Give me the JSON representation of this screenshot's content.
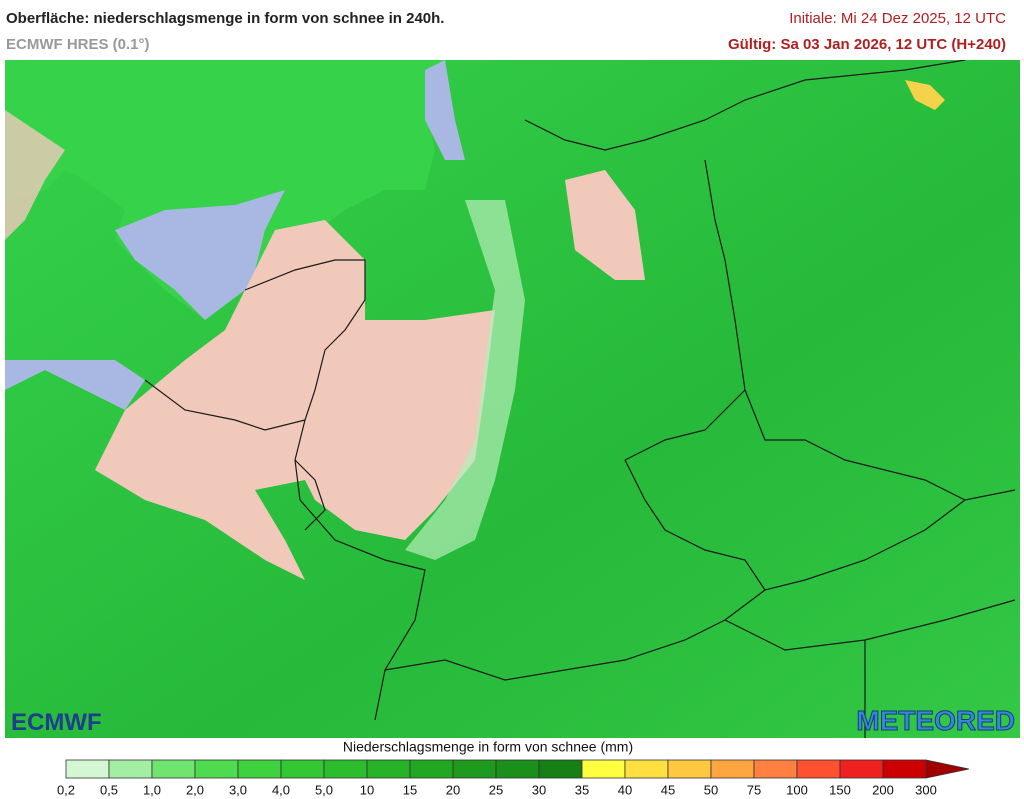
{
  "header": {
    "title": "Oberfläche: niederschlagsmenge in form von schnee in 240h.",
    "model": "ECMWF HRES (0.1°)",
    "init": "Initiale: Mi 24 Dez 2025, 12 UTC",
    "valid": "Gültig: Sa 03 Jan 2026, 12 UTC (H+240)"
  },
  "logos": {
    "left": "ECMWF",
    "right": "METEORED"
  },
  "legend": {
    "title": "Niederschlagsmenge in form von schnee (mm)",
    "labels": [
      "0,2",
      "0,5",
      "1,0",
      "2,0",
      "3,0",
      "4,0",
      "5,0",
      "10",
      "15",
      "20",
      "25",
      "30",
      "35",
      "40",
      "45",
      "50",
      "75",
      "100",
      "150",
      "200",
      "300"
    ],
    "colors": [
      "#d2f7d2",
      "#a3eea3",
      "#6fe46f",
      "#4fdb4f",
      "#3ed23e",
      "#33c833",
      "#2cbd2c",
      "#27b227",
      "#22a722",
      "#1e9b1e",
      "#1a8f1a",
      "#167f16",
      "#ffff40",
      "#ffe040",
      "#ffc840",
      "#ffa640",
      "#ff8040",
      "#ff5030",
      "#ee2020",
      "#cc0000",
      "#a00000"
    ]
  }
}
